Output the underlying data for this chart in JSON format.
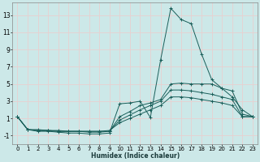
{
  "xlabel": "Humidex (Indice chaleur)",
  "bg_color": "#cce8e8",
  "line_color": "#1a5f5a",
  "grid_color": "#e8d0d0",
  "xlim": [
    -0.5,
    23.5
  ],
  "ylim": [
    -2.0,
    14.5
  ],
  "yticks": [
    -1,
    1,
    3,
    5,
    7,
    9,
    11,
    13
  ],
  "xticks": [
    0,
    1,
    2,
    3,
    4,
    5,
    6,
    7,
    8,
    9,
    10,
    11,
    12,
    13,
    14,
    15,
    16,
    17,
    18,
    19,
    20,
    21,
    22,
    23
  ],
  "line1_x": [
    0,
    1,
    2,
    3,
    4,
    5,
    6,
    7,
    8,
    9,
    10,
    11,
    12,
    13,
    14,
    15,
    16,
    17,
    18,
    19,
    20,
    21,
    22,
    23
  ],
  "line1_y": [
    1.2,
    -0.3,
    -0.5,
    -0.5,
    -0.6,
    -0.7,
    -0.7,
    -0.8,
    -0.8,
    -0.7,
    2.7,
    2.8,
    3.0,
    1.1,
    7.8,
    13.8,
    12.5,
    12.0,
    8.5,
    5.5,
    4.5,
    3.5,
    2.0,
    1.2
  ],
  "line2_x": [
    0,
    1,
    2,
    3,
    4,
    5,
    6,
    7,
    8,
    9,
    10,
    11,
    12,
    13,
    14,
    15,
    16,
    17,
    18,
    19,
    20,
    21,
    22,
    23
  ],
  "line2_y": [
    1.2,
    -0.3,
    -0.4,
    -0.4,
    -0.5,
    -0.5,
    -0.5,
    -0.6,
    -0.6,
    -0.5,
    1.2,
    1.8,
    2.5,
    2.8,
    3.2,
    5.0,
    5.1,
    5.0,
    5.0,
    5.0,
    4.5,
    4.2,
    1.5,
    1.2
  ],
  "line3_x": [
    0,
    1,
    2,
    3,
    4,
    5,
    6,
    7,
    8,
    9,
    10,
    11,
    12,
    13,
    14,
    15,
    16,
    17,
    18,
    19,
    20,
    21,
    22,
    23
  ],
  "line3_y": [
    1.2,
    -0.3,
    -0.4,
    -0.4,
    -0.5,
    -0.5,
    -0.5,
    -0.5,
    -0.5,
    -0.5,
    0.8,
    1.4,
    2.0,
    2.5,
    3.0,
    4.3,
    4.3,
    4.2,
    4.0,
    3.8,
    3.5,
    3.2,
    1.2,
    1.2
  ],
  "line4_x": [
    0,
    1,
    2,
    3,
    4,
    5,
    6,
    7,
    8,
    9,
    10,
    11,
    12,
    13,
    14,
    15,
    16,
    17,
    18,
    19,
    20,
    21,
    22,
    23
  ],
  "line4_y": [
    1.2,
    -0.3,
    -0.3,
    -0.4,
    -0.4,
    -0.5,
    -0.5,
    -0.5,
    -0.5,
    -0.4,
    0.5,
    1.0,
    1.5,
    2.0,
    2.5,
    3.5,
    3.5,
    3.4,
    3.2,
    3.0,
    2.8,
    2.5,
    1.2,
    1.2
  ],
  "xlabel_fontsize": 5.5,
  "tick_fontsize": 5,
  "ytick_fontsize": 5.5
}
